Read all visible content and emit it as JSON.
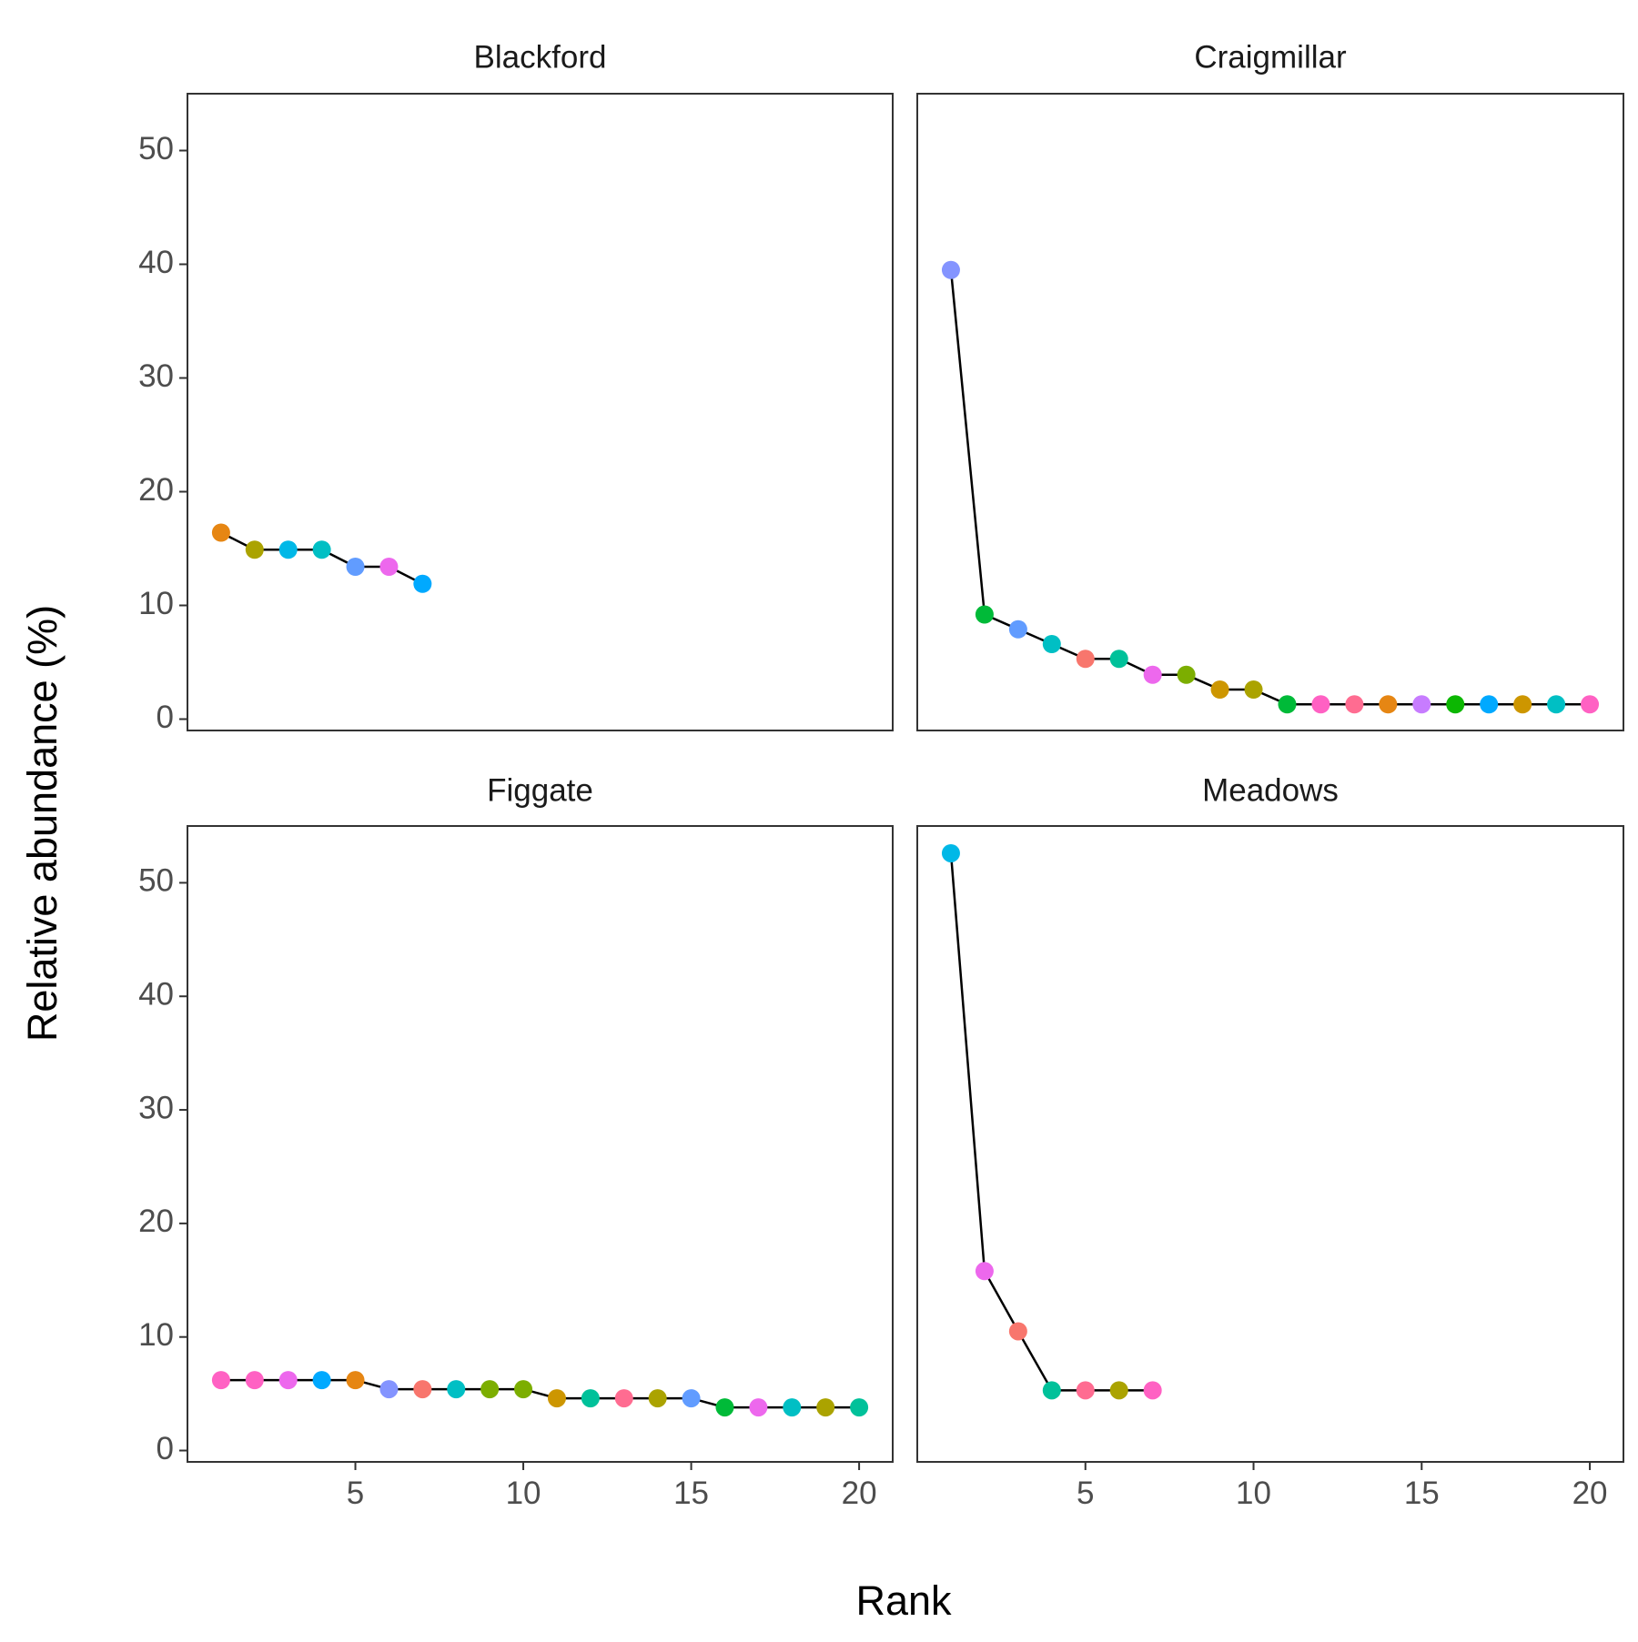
{
  "chart_data": {
    "type": "line",
    "xlabel": "Rank",
    "ylabel": "Relative abundance (%)",
    "xlim": [
      0,
      21
    ],
    "ylim": [
      -1,
      55
    ],
    "x_ticks": [
      5,
      10,
      15,
      20
    ],
    "y_ticks": [
      0,
      10,
      20,
      30,
      40,
      50
    ],
    "grid": false,
    "legend": "none",
    "line_color": "#000000",
    "panels": [
      {
        "name": "Blackford",
        "x": [
          1,
          2,
          3,
          4,
          5,
          6,
          7
        ],
        "y": [
          16.4,
          14.9,
          14.9,
          14.9,
          13.4,
          13.4,
          11.9
        ],
        "colors": [
          "#E68613",
          "#ABA300",
          "#00B8E7",
          "#00BFC4",
          "#619CFF",
          "#ED68ED",
          "#00A9FF"
        ]
      },
      {
        "name": "Craigmillar",
        "x": [
          1,
          2,
          3,
          4,
          5,
          6,
          7,
          8,
          9,
          10,
          11,
          12,
          13,
          14,
          15,
          16,
          17,
          18,
          19,
          20
        ],
        "y": [
          39.5,
          9.2,
          7.9,
          6.6,
          5.3,
          5.3,
          3.9,
          3.9,
          2.6,
          2.6,
          1.3,
          1.3,
          1.3,
          1.3,
          1.3,
          1.3,
          1.3,
          1.3,
          1.3,
          1.3
        ],
        "colors": [
          "#8494FF",
          "#00BA38",
          "#619CFF",
          "#00BFC4",
          "#F8766D",
          "#00C19A",
          "#ED68ED",
          "#7CAE00",
          "#CD9600",
          "#ABA300",
          "#00BA38",
          "#FF61C3",
          "#FF6C91",
          "#E68613",
          "#C77CFF",
          "#0CB702",
          "#00A9FF",
          "#CD9600",
          "#00BFC4",
          "#FF61C3"
        ]
      },
      {
        "name": "Figgate",
        "x": [
          1,
          2,
          3,
          4,
          5,
          6,
          7,
          8,
          9,
          10,
          11,
          12,
          13,
          14,
          15,
          16,
          17,
          18,
          19,
          20
        ],
        "y": [
          6.2,
          6.2,
          6.2,
          6.2,
          6.2,
          5.4,
          5.4,
          5.4,
          5.4,
          5.4,
          4.6,
          4.6,
          4.6,
          4.6,
          4.6,
          3.8,
          3.8,
          3.8,
          3.8,
          3.8
        ],
        "colors": [
          "#FF61C3",
          "#FF61C3",
          "#ED68ED",
          "#00A9FF",
          "#E68613",
          "#8494FF",
          "#F8766D",
          "#00BFC4",
          "#7CAE00",
          "#7CAE00",
          "#CD9600",
          "#00C19A",
          "#FF6C91",
          "#ABA300",
          "#619CFF",
          "#00BA38",
          "#ED68ED",
          "#00BFC4",
          "#ABA300",
          "#00C19A"
        ]
      },
      {
        "name": "Meadows",
        "x": [
          1,
          2,
          3,
          4,
          5,
          6,
          7
        ],
        "y": [
          52.6,
          15.8,
          10.5,
          5.3,
          5.3,
          5.3,
          5.3
        ],
        "colors": [
          "#00B8E7",
          "#ED68ED",
          "#F8766D",
          "#00C19A",
          "#FF6C91",
          "#ABA300",
          "#FF61C3"
        ]
      }
    ]
  }
}
